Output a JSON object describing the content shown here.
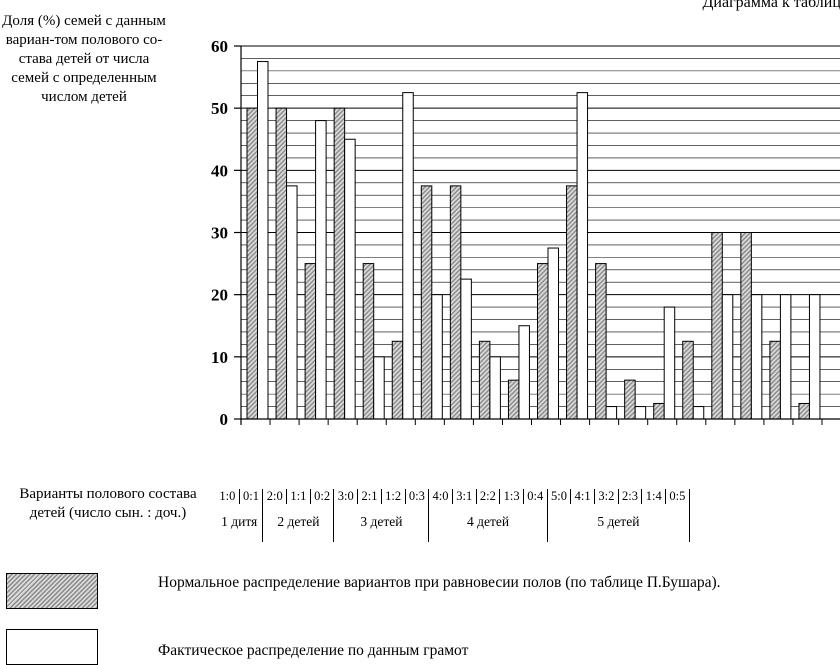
{
  "header": {
    "top_title": "Диаграмма к таблице",
    "y_axis_label": "Доля (%) семей с данным вариан-том полового со-става детей от числа семей с определенным числом детей"
  },
  "chart_data": {
    "type": "bar",
    "ylim": [
      0,
      60
    ],
    "yticks": [
      0,
      10,
      20,
      30,
      40,
      50,
      60
    ],
    "grid": true,
    "categories": [
      "1:0",
      "0:1",
      "2:0",
      "1:1",
      "0:2",
      "3:0",
      "2:1",
      "1:2",
      "0:3",
      "4:0",
      "3:1",
      "2:2",
      "1:3",
      "0:4",
      "5:0",
      "4:1",
      "3:2",
      "2:3",
      "1:4",
      "0:5"
    ],
    "groups": [
      {
        "label": "1 дитя",
        "size": 2
      },
      {
        "label": "2 детей",
        "size": 3
      },
      {
        "label": "3 детей",
        "size": 4
      },
      {
        "label": "4 детей",
        "size": 5
      },
      {
        "label": "5 детей",
        "size": 6
      }
    ],
    "series": [
      {
        "name": "Нормальное распределение вариантов при равновесии полов (по таблице П.Бушара).",
        "values": [
          50,
          50,
          25,
          50,
          25,
          12.5,
          37.5,
          37.5,
          12.5,
          6.25,
          25,
          37.5,
          25,
          6.25,
          2.5,
          12.5,
          30,
          30,
          12.5,
          2.5
        ]
      },
      {
        "name": "Фактическое распределение по данным грамот",
        "values": [
          57.5,
          37.5,
          48,
          45,
          10,
          52.5,
          20,
          22.5,
          10,
          15,
          27.5,
          52.5,
          2,
          2,
          18,
          2,
          20,
          20,
          20,
          20
        ]
      }
    ]
  },
  "table": {
    "label": "Варианты полового состава детей (число сын. : доч.)"
  },
  "legend": {
    "normal_label": "Нормальное распределение вариантов при равновесии полов (по таблице П.Бушара).",
    "actual_label": "Фактическое распределение по данным грамот"
  }
}
